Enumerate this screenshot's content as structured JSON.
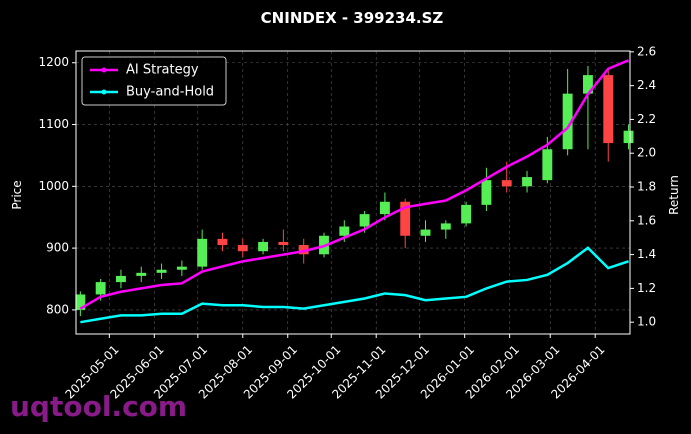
{
  "chart_data": {
    "type": "candlestick",
    "title": "CNINDEX - 399234.SZ",
    "ylabel": "Price",
    "y2label": "Return",
    "watermark": "uqtool.com",
    "x": [
      "2025-04-11",
      "2025-04-25",
      "2025-05-09",
      "2025-05-23",
      "2025-06-06",
      "2025-06-20",
      "2025-07-04",
      "2025-07-18",
      "2025-08-01",
      "2025-08-15",
      "2025-08-29",
      "2025-09-12",
      "2025-09-26",
      "2025-10-10",
      "2025-10-24",
      "2025-11-07",
      "2025-11-21",
      "2025-12-05",
      "2025-12-19",
      "2026-01-02",
      "2026-01-16",
      "2026-01-30",
      "2026-02-13",
      "2026-02-27",
      "2026-03-13",
      "2026-03-27",
      "2026-04-10",
      "2026-04-24"
    ],
    "open": [
      800,
      825,
      845,
      855,
      860,
      865,
      870,
      915,
      905,
      895,
      910,
      905,
      890,
      920,
      935,
      955,
      975,
      920,
      930,
      940,
      970,
      1010,
      1000,
      1010,
      1060,
      1150,
      1180,
      1070
    ],
    "high": [
      830,
      850,
      865,
      870,
      875,
      880,
      930,
      925,
      915,
      915,
      930,
      915,
      925,
      945,
      960,
      990,
      980,
      945,
      945,
      975,
      1030,
      1040,
      1025,
      1080,
      1190,
      1195,
      1190,
      1100
    ],
    "low": [
      790,
      815,
      835,
      845,
      850,
      855,
      865,
      895,
      885,
      890,
      895,
      875,
      885,
      910,
      925,
      945,
      900,
      910,
      915,
      935,
      960,
      990,
      990,
      1005,
      1050,
      1060,
      1040,
      1060
    ],
    "close": [
      825,
      845,
      855,
      860,
      865,
      870,
      915,
      905,
      895,
      910,
      905,
      890,
      920,
      935,
      955,
      975,
      920,
      930,
      940,
      970,
      1010,
      1000,
      1015,
      1060,
      1150,
      1180,
      1070,
      1090
    ],
    "up_color": "#55ee55",
    "down_color": "#ff4444",
    "series": [
      {
        "name": "AI Strategy",
        "color": "#ff00ff",
        "axis": "y2",
        "values": [
          1.08,
          1.15,
          1.18,
          1.2,
          1.22,
          1.23,
          1.3,
          1.33,
          1.36,
          1.38,
          1.4,
          1.42,
          1.45,
          1.5,
          1.55,
          1.62,
          1.68,
          1.7,
          1.72,
          1.78,
          1.85,
          1.92,
          1.98,
          2.05,
          2.15,
          2.35,
          2.5,
          2.55
        ]
      },
      {
        "name": "Buy-and-Hold",
        "color": "#00ffff",
        "axis": "y2",
        "values": [
          1,
          1.02,
          1.04,
          1.04,
          1.05,
          1.05,
          1.11,
          1.1,
          1.1,
          1.09,
          1.09,
          1.08,
          1.1,
          1.12,
          1.14,
          1.17,
          1.16,
          1.13,
          1.14,
          1.15,
          1.2,
          1.24,
          1.25,
          1.28,
          1.35,
          1.44,
          1.32,
          1.36
        ]
      }
    ],
    "xlim": [
      "2025-04-08",
      "2026-04-25"
    ],
    "xticks": [
      "2025-05-01",
      "2025-06-01",
      "2025-07-01",
      "2025-08-01",
      "2025-09-01",
      "2025-10-01",
      "2025-11-01",
      "2025-12-01",
      "2026-01-01",
      "2026-02-01",
      "2026-03-01",
      "2026-04-01"
    ],
    "ylim": [
      761,
      1219
    ],
    "yticks": [
      800,
      900,
      1000,
      1100,
      1200
    ],
    "y2lim": [
      0.93,
      2.605
    ],
    "y2ticks": [
      {
        "value": 1,
        "label": "1.0"
      },
      1.2,
      1.4,
      1.6,
      1.8,
      {
        "value": 2,
        "label": "2.0"
      },
      2.2,
      2.4,
      2.6
    ],
    "grid": true,
    "legend": "upper left"
  }
}
